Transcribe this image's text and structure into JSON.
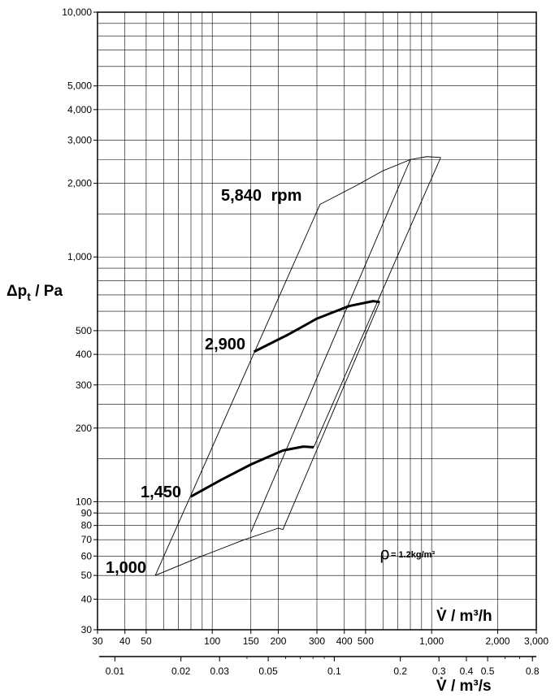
{
  "chart_data": {
    "type": "line",
    "title": "",
    "x_scale": "log",
    "y_scale": "log",
    "grid": true,
    "xlim_m3h": [
      30,
      3000
    ],
    "ylim_pa": [
      30,
      10000
    ],
    "ylabel": "Δp",
    "ylabel_sub": "t",
    "ylabel_unit": " / Pa",
    "xlabel_top": "V̇ / m³/h",
    "xlabel_bottom": "V̇ / m³/s",
    "y_ticks": [
      {
        "v": 30,
        "label": "30"
      },
      {
        "v": 40,
        "label": "40"
      },
      {
        "v": 50,
        "label": "50"
      },
      {
        "v": 60,
        "label": "60"
      },
      {
        "v": 70,
        "label": "70"
      },
      {
        "v": 80,
        "label": "80"
      },
      {
        "v": 90,
        "label": "90"
      },
      {
        "v": 100,
        "label": "100"
      },
      {
        "v": 200,
        "label": "200"
      },
      {
        "v": 300,
        "label": "300"
      },
      {
        "v": 400,
        "label": "400"
      },
      {
        "v": 500,
        "label": "500"
      },
      {
        "v": 1000,
        "label": "1,000"
      },
      {
        "v": 2000,
        "label": "2,000"
      },
      {
        "v": 3000,
        "label": "3,000"
      },
      {
        "v": 4000,
        "label": "4,000"
      },
      {
        "v": 5000,
        "label": "5,000"
      },
      {
        "v": 10000,
        "label": "10,000"
      }
    ],
    "x_ticks_m3h": [
      {
        "v": 30,
        "label": "30"
      },
      {
        "v": 40,
        "label": "40"
      },
      {
        "v": 50,
        "label": "50"
      },
      {
        "v": 100,
        "label": "100"
      },
      {
        "v": 150,
        "label": "150"
      },
      {
        "v": 200,
        "label": "200"
      },
      {
        "v": 300,
        "label": "300"
      },
      {
        "v": 400,
        "label": "400"
      },
      {
        "v": 500,
        "label": "500"
      },
      {
        "v": 1000,
        "label": "1,000"
      },
      {
        "v": 2000,
        "label": "2,000"
      },
      {
        "v": 3000,
        "label": "3,000"
      }
    ],
    "x_ticks_m3s": [
      {
        "v": 0.01,
        "label": "0.01"
      },
      {
        "v": 0.02,
        "label": "0.02"
      },
      {
        "v": 0.03,
        "label": "0.03"
      },
      {
        "v": 0.05,
        "label": "0.05"
      },
      {
        "v": 0.1,
        "label": "0.1"
      },
      {
        "v": 0.2,
        "label": "0.2"
      },
      {
        "v": 0.3,
        "label": "0.3"
      },
      {
        "v": 0.4,
        "label": "0.4"
      },
      {
        "v": 0.5,
        "label": "0.5"
      },
      {
        "v": 0.8,
        "label": "0.8"
      }
    ],
    "density_label": "ρ",
    "density_value": "= 1.2kg/m³",
    "series": [
      {
        "name": "1,000",
        "bold": false,
        "x": [
          55,
          90,
          140,
          200,
          210
        ],
        "y": [
          50,
          60,
          70,
          78,
          77
        ]
      },
      {
        "name": "1,450",
        "bold": true,
        "x": [
          80,
          110,
          150,
          210,
          260,
          290
        ],
        "y": [
          105,
          123,
          142,
          162,
          168,
          167
        ]
      },
      {
        "name": "2,900",
        "bold": true,
        "x": [
          155,
          220,
          300,
          420,
          540,
          580
        ],
        "y": [
          410,
          480,
          560,
          630,
          660,
          655
        ]
      },
      {
        "name": "5,840 rpm",
        "bold": false,
        "x": [
          310,
          450,
          600,
          800,
          950,
          1100
        ],
        "y": [
          1640,
          1950,
          2250,
          2500,
          2570,
          2550
        ]
      }
    ],
    "envelope_lines": [
      {
        "x": [
          55,
          310
        ],
        "y": [
          50,
          1640
        ]
      },
      {
        "x": [
          150,
          800
        ],
        "y": [
          75,
          2500
        ]
      },
      {
        "x": [
          210,
          580
        ],
        "y": [
          77,
          655
        ]
      },
      {
        "x": [
          290,
          1100
        ],
        "y": [
          167,
          2550
        ]
      }
    ]
  }
}
